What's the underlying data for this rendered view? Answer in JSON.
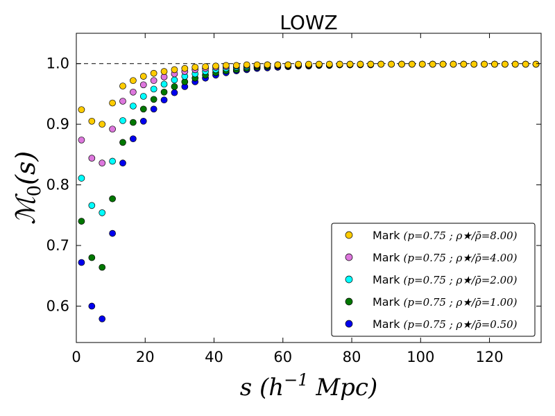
{
  "chart_data": {
    "type": "scatter",
    "title": "LOWZ",
    "xlabel": "s (h⁻¹ Mpc)",
    "ylabel": "ℳ₀(s)",
    "xlim": [
      0,
      135
    ],
    "ylim": [
      0.54,
      1.05
    ],
    "xticks": [
      0,
      20,
      40,
      60,
      80,
      100,
      120
    ],
    "yticks": [
      0.6,
      0.7,
      0.8,
      0.9,
      1.0
    ],
    "xtick_labels": [
      "0",
      "20",
      "40",
      "60",
      "80",
      "100",
      "120"
    ],
    "ytick_labels": [
      "0.6",
      "0.7",
      "0.8",
      "0.9",
      "1.0"
    ],
    "reference_line": {
      "y": 1.0,
      "style": "dashed"
    },
    "legend_position": "lower-right",
    "x": [
      1.5,
      4.5,
      7.5,
      10.5,
      13.5,
      16.5,
      19.5,
      22.5,
      25.5,
      28.5,
      31.5,
      34.5,
      37.5,
      40.5,
      43.5,
      46.5,
      49.5,
      52.5,
      55.5,
      58.5,
      61.5,
      64.5,
      67.5,
      70.5,
      73.5,
      76.5,
      79.5,
      82.5,
      85.5,
      88.5,
      91.5,
      94.5,
      97.5,
      100.5,
      103.5,
      106.5,
      109.5,
      112.5,
      115.5,
      118.5,
      121.5,
      124.5,
      127.5,
      130.5,
      133.5
    ],
    "series": [
      {
        "name": "Mark",
        "params": "(p=0.75 ; ρ★/ρ̄=8.00)",
        "color": "#ffcc00",
        "values": [
          0.924,
          0.905,
          0.9,
          0.935,
          0.963,
          0.972,
          0.979,
          0.984,
          0.987,
          0.99,
          0.992,
          0.994,
          0.995,
          0.996,
          0.997,
          0.997,
          0.998,
          0.998,
          0.998,
          0.998,
          0.998,
          0.999,
          0.999,
          0.999,
          0.999,
          0.999,
          0.999,
          0.999,
          0.999,
          0.999,
          0.999,
          0.999,
          0.999,
          0.999,
          0.999,
          0.999,
          0.999,
          0.999,
          0.999,
          0.999,
          0.999,
          0.999,
          0.999,
          0.999,
          0.999
        ]
      },
      {
        "name": "Mark",
        "params": "(p=0.75 ; ρ★/ρ̄=4.00)",
        "color": "#dd77dd",
        "values": [
          0.874,
          0.844,
          0.836,
          0.892,
          0.938,
          0.953,
          0.965,
          0.972,
          0.978,
          0.983,
          0.987,
          0.99,
          0.992,
          0.994,
          0.995,
          0.996,
          0.997,
          0.997,
          0.998,
          0.998,
          0.998,
          0.998,
          0.998,
          0.999,
          0.999,
          0.999,
          0.999,
          0.999,
          0.999,
          0.999,
          0.999,
          0.999,
          0.999,
          0.999,
          0.999,
          0.999,
          0.999,
          0.999,
          0.999,
          0.999,
          0.999,
          0.999,
          0.999,
          0.999,
          0.999
        ]
      },
      {
        "name": "Mark",
        "params": "(p=0.75 ; ρ★/ρ̄=2.00)",
        "color": "#00ffff",
        "values": [
          0.811,
          0.766,
          0.754,
          0.839,
          0.906,
          0.93,
          0.946,
          0.958,
          0.966,
          0.973,
          0.979,
          0.983,
          0.987,
          0.99,
          0.992,
          0.994,
          0.995,
          0.996,
          0.997,
          0.997,
          0.997,
          0.998,
          0.998,
          0.998,
          0.998,
          0.999,
          0.999,
          0.999,
          0.999,
          0.999,
          0.999,
          0.999,
          0.999,
          0.999,
          0.999,
          0.999,
          0.999,
          0.999,
          0.999,
          0.999,
          0.999,
          0.999,
          0.999,
          0.999,
          0.999
        ]
      },
      {
        "name": "Mark",
        "params": "(p=0.75 ; ρ★/ρ̄=1.00)",
        "color": "#007700",
        "values": [
          0.74,
          0.68,
          0.664,
          0.777,
          0.87,
          0.903,
          0.925,
          0.941,
          0.953,
          0.962,
          0.97,
          0.976,
          0.981,
          0.985,
          0.988,
          0.99,
          0.992,
          0.994,
          0.995,
          0.996,
          0.996,
          0.997,
          0.997,
          0.998,
          0.998,
          0.998,
          0.998,
          0.999,
          0.999,
          0.999,
          0.999,
          0.999,
          0.999,
          0.999,
          0.999,
          0.999,
          0.999,
          0.999,
          0.999,
          0.999,
          0.999,
          0.999,
          0.999,
          0.999,
          0.999
        ]
      },
      {
        "name": "Mark",
        "params": "(p=0.75 ; ρ★/ρ̄=0.50)",
        "color": "#0000ee",
        "values": [
          0.672,
          0.6,
          0.579,
          0.72,
          0.836,
          0.876,
          0.905,
          0.925,
          0.94,
          0.952,
          0.962,
          0.97,
          0.976,
          0.981,
          0.985,
          0.988,
          0.99,
          0.992,
          0.993,
          0.994,
          0.995,
          0.996,
          0.996,
          0.997,
          0.997,
          0.998,
          0.998,
          0.998,
          0.998,
          0.999,
          0.999,
          0.999,
          0.999,
          0.999,
          0.999,
          0.999,
          0.999,
          0.999,
          0.999,
          0.999,
          0.999,
          0.999,
          0.999,
          0.999,
          0.999
        ]
      }
    ]
  }
}
